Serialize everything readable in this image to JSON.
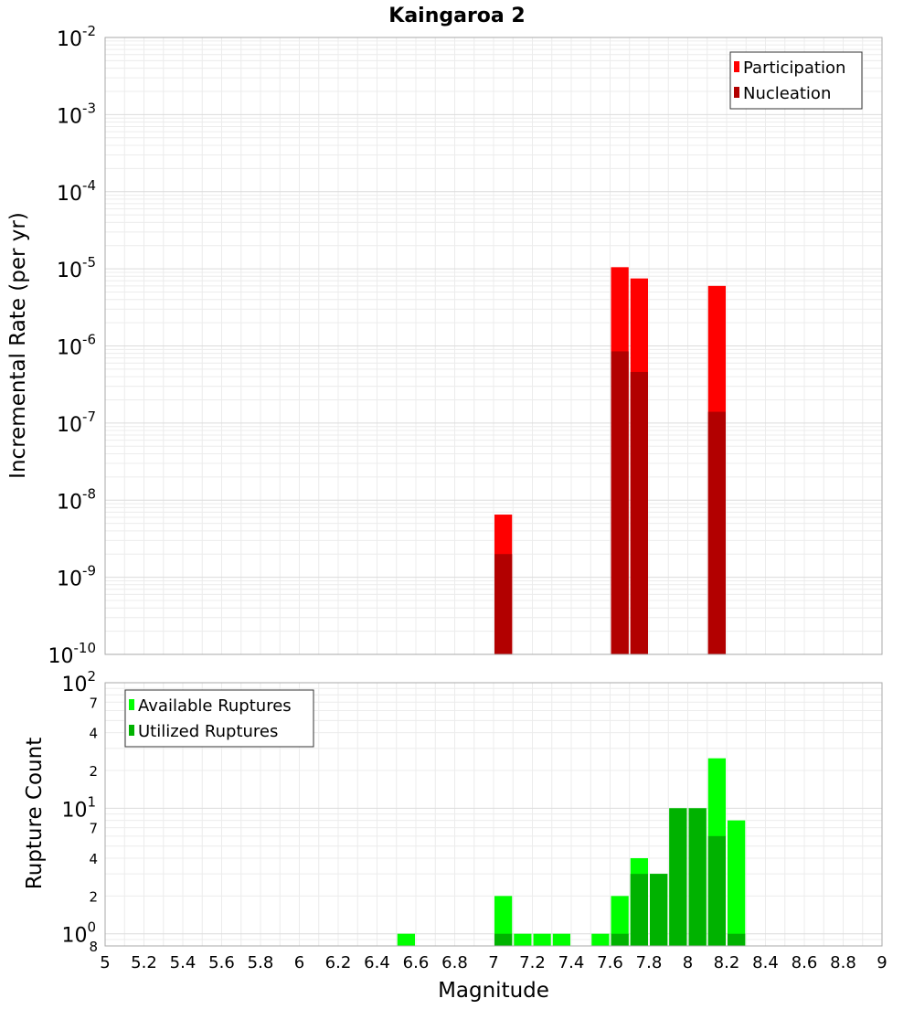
{
  "chart_data": {
    "title": "Kaingaroa 2",
    "xlabel": "Magnitude",
    "xlim": [
      5,
      9
    ],
    "x_ticks": [
      "5",
      "5.2",
      "5.4",
      "5.6",
      "5.8",
      "6",
      "6.2",
      "6.4",
      "6.6",
      "6.8",
      "7",
      "7.2",
      "7.4",
      "7.6",
      "7.8",
      "8",
      "8.2",
      "8.4",
      "8.6",
      "8.8",
      "9"
    ],
    "grid": true,
    "panels": [
      {
        "type": "bar",
        "ylabel": "Incremental Rate (per yr)",
        "yscale": "log",
        "ylim": [
          1e-10,
          0.01
        ],
        "y_tick_bases": [
          "10",
          "10",
          "10",
          "10",
          "10",
          "10",
          "10",
          "10",
          "10"
        ],
        "y_tick_exponents": [
          "-10",
          "-9",
          "-8",
          "-7",
          "-6",
          "-5",
          "-4",
          "-3",
          "-2"
        ],
        "legend_position": "top-right",
        "series": [
          {
            "name": "Participation",
            "color": "#ff0000",
            "points": [
              {
                "x": 7.05,
                "y": 6.5e-09
              },
              {
                "x": 7.65,
                "y": 1.05e-05
              },
              {
                "x": 7.75,
                "y": 7.5e-06
              },
              {
                "x": 8.15,
                "y": 6e-06
              }
            ]
          },
          {
            "name": "Nucleation",
            "color": "#b20000",
            "points": [
              {
                "x": 7.05,
                "y": 2e-09
              },
              {
                "x": 7.65,
                "y": 8.5e-07
              },
              {
                "x": 7.75,
                "y": 4.6e-07
              },
              {
                "x": 8.15,
                "y": 1.4e-07
              }
            ]
          }
        ]
      },
      {
        "type": "bar",
        "ylabel": "Rupture Count",
        "yscale": "log",
        "ylim": [
          0.8,
          100
        ],
        "y_major_bases": [
          "10",
          "10",
          "10"
        ],
        "y_major_exponents": [
          "0",
          "1",
          "2"
        ],
        "y_minor_labels": [
          "8",
          "2",
          "4",
          "7",
          "2",
          "4",
          "7"
        ],
        "legend_position": "top-left",
        "series": [
          {
            "name": "Available Ruptures",
            "color": "#00ff00",
            "points": [
              {
                "x": 6.55,
                "y": 1
              },
              {
                "x": 7.05,
                "y": 2
              },
              {
                "x": 7.15,
                "y": 1
              },
              {
                "x": 7.25,
                "y": 1
              },
              {
                "x": 7.35,
                "y": 1
              },
              {
                "x": 7.55,
                "y": 1
              },
              {
                "x": 7.65,
                "y": 2
              },
              {
                "x": 7.75,
                "y": 4
              },
              {
                "x": 7.85,
                "y": 3
              },
              {
                "x": 7.95,
                "y": 10
              },
              {
                "x": 8.05,
                "y": 10
              },
              {
                "x": 8.15,
                "y": 25
              },
              {
                "x": 8.25,
                "y": 8
              }
            ]
          },
          {
            "name": "Utilized Ruptures",
            "color": "#00b200",
            "points": [
              {
                "x": 7.05,
                "y": 1
              },
              {
                "x": 7.65,
                "y": 1
              },
              {
                "x": 7.75,
                "y": 3
              },
              {
                "x": 7.85,
                "y": 3
              },
              {
                "x": 7.95,
                "y": 10
              },
              {
                "x": 8.05,
                "y": 10
              },
              {
                "x": 8.15,
                "y": 6
              },
              {
                "x": 8.25,
                "y": 1
              }
            ]
          }
        ]
      }
    ]
  }
}
